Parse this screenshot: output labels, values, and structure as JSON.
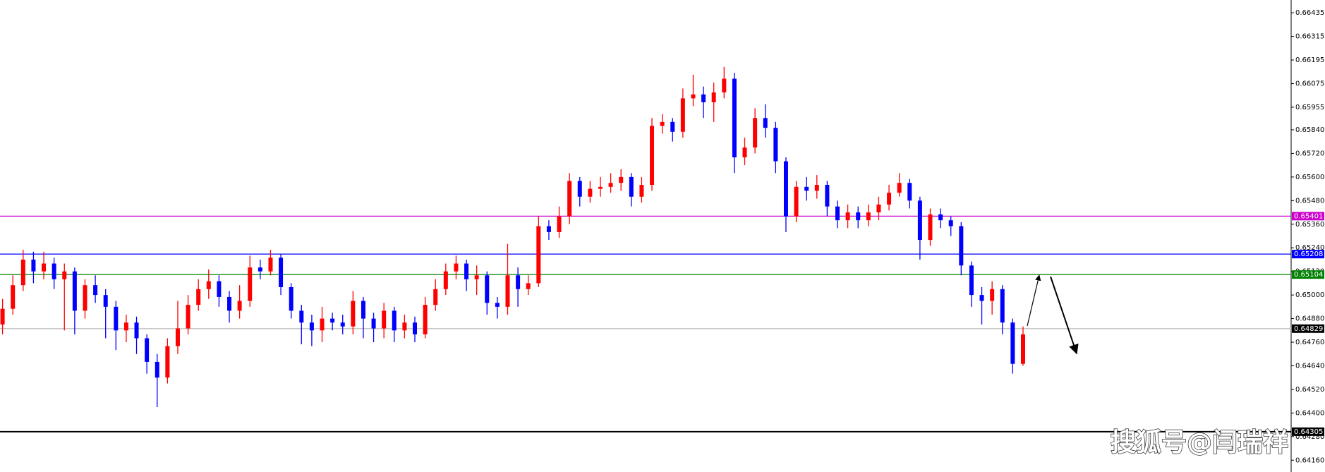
{
  "chart_data": {
    "type": "candlestick",
    "up_color": "#ff0000",
    "down_color": "#0000ff",
    "open": [
      0.6485,
      0.6493,
      0.6505,
      0.6518,
      0.6512,
      0.6516,
      0.6508,
      0.6512,
      0.6492,
      0.6505,
      0.65,
      0.6494,
      0.6482,
      0.6486,
      0.6478,
      0.6466,
      0.6458,
      0.6474,
      0.6483,
      0.6495,
      0.6503,
      0.6507,
      0.6499,
      0.6492,
      0.6497,
      0.6514,
      0.6512,
      0.6519,
      0.6504,
      0.6492,
      0.6486,
      0.6482,
      0.6488,
      0.6486,
      0.6484,
      0.6497,
      0.6488,
      0.6483,
      0.6492,
      0.6482,
      0.6486,
      0.648,
      0.6495,
      0.6503,
      0.6512,
      0.6516,
      0.6508,
      0.651,
      0.6496,
      0.6494,
      0.651,
      0.6503,
      0.6506,
      0.6535,
      0.6532,
      0.654,
      0.6558,
      0.655,
      0.6554,
      0.6555,
      0.6557,
      0.656,
      0.655,
      0.6556,
      0.6586,
      0.6588,
      0.6583,
      0.66,
      0.6602,
      0.6598,
      0.6603,
      0.661,
      0.657,
      0.6575,
      0.659,
      0.6585,
      0.6568,
      0.654,
      0.6555,
      0.6553,
      0.6556,
      0.6545,
      0.6538,
      0.6542,
      0.6538,
      0.6542,
      0.6546,
      0.6552,
      0.6557,
      0.6548,
      0.6528,
      0.6541,
      0.6538,
      0.6535,
      0.6515,
      0.65,
      0.6497,
      0.6503,
      0.6486,
      0.6465
    ],
    "high": [
      0.6498,
      0.651,
      0.6523,
      0.6522,
      0.6522,
      0.6519,
      0.6516,
      0.6514,
      0.6508,
      0.651,
      0.6503,
      0.6497,
      0.649,
      0.6489,
      0.648,
      0.647,
      0.6478,
      0.6497,
      0.65,
      0.6508,
      0.6513,
      0.651,
      0.6502,
      0.6505,
      0.652,
      0.6518,
      0.6523,
      0.6521,
      0.6506,
      0.6495,
      0.649,
      0.6494,
      0.6491,
      0.649,
      0.6502,
      0.6499,
      0.6491,
      0.6496,
      0.6494,
      0.649,
      0.6489,
      0.6499,
      0.6508,
      0.6516,
      0.652,
      0.6518,
      0.6515,
      0.6512,
      0.6499,
      0.6526,
      0.6514,
      0.651,
      0.654,
      0.6538,
      0.6545,
      0.6562,
      0.656,
      0.6558,
      0.656,
      0.6562,
      0.6564,
      0.6562,
      0.656,
      0.659,
      0.6592,
      0.659,
      0.6605,
      0.6612,
      0.6606,
      0.6608,
      0.6616,
      0.6613,
      0.658,
      0.6595,
      0.6597,
      0.6588,
      0.657,
      0.6558,
      0.656,
      0.6561,
      0.6558,
      0.6548,
      0.6546,
      0.6545,
      0.6546,
      0.655,
      0.6556,
      0.6562,
      0.6559,
      0.655,
      0.6544,
      0.6544,
      0.654,
      0.6537,
      0.6517,
      0.6504,
      0.6507,
      0.6505,
      0.6488,
      0.6484
    ],
    "low": [
      0.648,
      0.649,
      0.6502,
      0.6506,
      0.6508,
      0.6503,
      0.6482,
      0.648,
      0.6488,
      0.6496,
      0.6478,
      0.6472,
      0.6476,
      0.647,
      0.646,
      0.6443,
      0.6455,
      0.647,
      0.648,
      0.6492,
      0.6498,
      0.6494,
      0.6486,
      0.6488,
      0.6494,
      0.6508,
      0.651,
      0.65,
      0.6488,
      0.6475,
      0.6474,
      0.6476,
      0.6482,
      0.648,
      0.648,
      0.6478,
      0.6476,
      0.6478,
      0.6476,
      0.6478,
      0.6476,
      0.6478,
      0.6492,
      0.65,
      0.6508,
      0.6502,
      0.65,
      0.649,
      0.6488,
      0.649,
      0.6494,
      0.65,
      0.6504,
      0.6528,
      0.6529,
      0.6536,
      0.6545,
      0.6547,
      0.655,
      0.6552,
      0.6553,
      0.6545,
      0.6547,
      0.6553,
      0.6582,
      0.6578,
      0.658,
      0.6596,
      0.659,
      0.6588,
      0.66,
      0.6562,
      0.6566,
      0.6572,
      0.658,
      0.6562,
      0.6532,
      0.6537,
      0.6548,
      0.6549,
      0.654,
      0.6534,
      0.6534,
      0.6534,
      0.6535,
      0.6538,
      0.6543,
      0.655,
      0.6544,
      0.6518,
      0.6525,
      0.6534,
      0.653,
      0.651,
      0.6494,
      0.6485,
      0.649,
      0.648,
      0.646,
      0.6464
    ],
    "close": [
      0.6493,
      0.6505,
      0.6518,
      0.6512,
      0.6516,
      0.6508,
      0.6512,
      0.6492,
      0.6505,
      0.65,
      0.6494,
      0.6482,
      0.6486,
      0.6478,
      0.6466,
      0.6458,
      0.6474,
      0.6483,
      0.6495,
      0.6503,
      0.6507,
      0.6499,
      0.6492,
      0.6497,
      0.6514,
      0.6512,
      0.6519,
      0.6504,
      0.6492,
      0.6486,
      0.6482,
      0.6488,
      0.6486,
      0.6484,
      0.6497,
      0.6488,
      0.6483,
      0.6492,
      0.6482,
      0.6486,
      0.648,
      0.6495,
      0.6503,
      0.6512,
      0.6516,
      0.6508,
      0.651,
      0.6496,
      0.6494,
      0.651,
      0.6503,
      0.6506,
      0.6535,
      0.6532,
      0.654,
      0.6558,
      0.655,
      0.6554,
      0.6555,
      0.6557,
      0.656,
      0.655,
      0.6556,
      0.6586,
      0.6588,
      0.6583,
      0.66,
      0.6602,
      0.6598,
      0.6603,
      0.661,
      0.657,
      0.6575,
      0.659,
      0.6585,
      0.6568,
      0.654,
      0.6555,
      0.6553,
      0.6556,
      0.6545,
      0.6538,
      0.6542,
      0.6538,
      0.6542,
      0.6546,
      0.6552,
      0.6557,
      0.6548,
      0.6528,
      0.6541,
      0.6538,
      0.6535,
      0.6515,
      0.65,
      0.6497,
      0.6503,
      0.6486,
      0.6465,
      0.648
    ],
    "ylim": [
      0.641,
      0.665
    ],
    "yticks": [
      0.66435,
      {
        "value": 0.66315,
        "label": "0.66315"
      },
      0.66195,
      0.66075,
      0.65955,
      {
        "value": 0.6584,
        "label": "0.65840"
      },
      {
        "value": 0.6572,
        "label": "0.65720"
      },
      {
        "value": 0.656,
        "label": "0.65600"
      },
      {
        "value": 0.6548,
        "label": "0.65480"
      },
      {
        "value": 0.6536,
        "label": "0.65360"
      },
      {
        "value": 0.6524,
        "label": "0.65240"
      },
      {
        "value": 0.6512,
        "label": "0.65120"
      },
      {
        "value": 0.65,
        "label": "0.65000"
      },
      {
        "value": 0.6488,
        "label": "0.64880"
      },
      {
        "value": 0.6476,
        "label": "0.64760"
      },
      {
        "value": 0.6464,
        "label": "0.64640"
      },
      {
        "value": 0.6452,
        "label": "0.64520"
      },
      {
        "value": 0.644,
        "label": "0.64400"
      },
      {
        "value": 0.6428,
        "label": "0.64280"
      },
      {
        "value": 0.6416,
        "label": "0.64160"
      }
    ],
    "grid": false,
    "levels": [
      {
        "value": 0.65401,
        "color": "#cc00cc"
      },
      {
        "value": 0.65208,
        "color": "#0000ff"
      },
      {
        "value": 0.65104,
        "color": "#008000"
      },
      {
        "value": 0.64829,
        "color": "#c0c0c0"
      },
      {
        "value": 0.64305,
        "color": "#000000"
      }
    ],
    "watermark": "搜狐号@闫瑞祥"
  }
}
